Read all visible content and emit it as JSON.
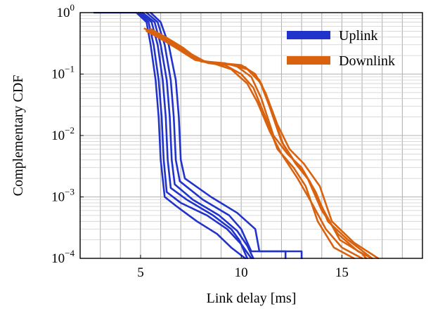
{
  "chart_data": {
    "type": "line",
    "xlabel": "Link delay [ms]",
    "ylabel": "Complementary CDF",
    "xlim": [
      2,
      19
    ],
    "ylim": [
      0.0001,
      1
    ],
    "yscale": "log",
    "grid": true,
    "legend_position": "top-right",
    "x_ticks": [
      {
        "value": 5,
        "label": "5"
      },
      {
        "value": 10,
        "label": "10"
      },
      {
        "value": 15,
        "label": "15"
      }
    ],
    "y_ticks": [
      {
        "value": 1,
        "base": "10",
        "exp": "0"
      },
      {
        "value": 0.1,
        "base": "10",
        "exp": "−1"
      },
      {
        "value": 0.01,
        "base": "10",
        "exp": "−2"
      },
      {
        "value": 0.001,
        "base": "10",
        "exp": "−3"
      },
      {
        "value": 0.0001,
        "base": "10",
        "exp": "−4"
      }
    ],
    "legend": [
      {
        "label": "Uplink",
        "color": "#2233cc"
      },
      {
        "label": "Downlink",
        "color": "#d9620f"
      }
    ],
    "series": [
      {
        "group": "Uplink",
        "color": "#2233cc",
        "points": [
          [
            2.7,
            1
          ],
          [
            4.8,
            1
          ],
          [
            5.3,
            0.7
          ],
          [
            5.5,
            0.3
          ],
          [
            5.75,
            0.08
          ],
          [
            5.9,
            0.02
          ],
          [
            6.0,
            0.004
          ],
          [
            6.2,
            0.001
          ],
          [
            6.8,
            0.0007
          ],
          [
            7.8,
            0.0004
          ],
          [
            8.8,
            0.00025
          ],
          [
            9.5,
            0.00015
          ],
          [
            10.2,
            0.0001
          ]
        ]
      },
      {
        "group": "Uplink",
        "color": "#2233cc",
        "points": [
          [
            4.9,
            1
          ],
          [
            5.4,
            0.7
          ],
          [
            5.65,
            0.3
          ],
          [
            5.9,
            0.08
          ],
          [
            6.05,
            0.02
          ],
          [
            6.15,
            0.004
          ],
          [
            6.3,
            0.0012
          ],
          [
            7.0,
            0.0008
          ],
          [
            8.3,
            0.0005
          ],
          [
            9.3,
            0.0003
          ],
          [
            10.0,
            0.00017
          ],
          [
            10.5,
            0.0001
          ]
        ]
      },
      {
        "group": "Uplink",
        "color": "#2233cc",
        "points": [
          [
            5.0,
            1
          ],
          [
            5.55,
            0.7
          ],
          [
            5.85,
            0.3
          ],
          [
            6.1,
            0.08
          ],
          [
            6.25,
            0.02
          ],
          [
            6.35,
            0.004
          ],
          [
            6.5,
            0.0014
          ],
          [
            7.3,
            0.0009
          ],
          [
            8.6,
            0.0005
          ],
          [
            9.5,
            0.0003
          ],
          [
            9.9,
            0.0002
          ],
          [
            10.3,
            0.0001
          ]
        ]
      },
      {
        "group": "Uplink",
        "color": "#2233cc",
        "points": [
          [
            5.1,
            1
          ],
          [
            5.7,
            0.7
          ],
          [
            6.0,
            0.3
          ],
          [
            6.3,
            0.08
          ],
          [
            6.45,
            0.02
          ],
          [
            6.55,
            0.004
          ],
          [
            6.7,
            0.0016
          ],
          [
            7.6,
            0.0009
          ],
          [
            8.9,
            0.0005
          ],
          [
            9.8,
            0.00028
          ],
          [
            10.3,
            0.00016
          ],
          [
            10.6,
            0.0001
          ]
        ]
      },
      {
        "group": "Uplink",
        "color": "#2233cc",
        "points": [
          [
            5.3,
            1
          ],
          [
            5.85,
            0.7
          ],
          [
            6.2,
            0.3
          ],
          [
            6.5,
            0.08
          ],
          [
            6.65,
            0.02
          ],
          [
            6.75,
            0.004
          ],
          [
            6.95,
            0.0018
          ],
          [
            8.1,
            0.0009
          ],
          [
            9.4,
            0.0005
          ],
          [
            10.0,
            0.0003
          ],
          [
            10.5,
            0.00013
          ],
          [
            13.0,
            0.00013
          ],
          [
            13.0,
            0.0001
          ]
        ]
      },
      {
        "group": "Uplink",
        "color": "#2233cc",
        "points": [
          [
            5.5,
            1
          ],
          [
            6.0,
            0.7
          ],
          [
            6.4,
            0.3
          ],
          [
            6.75,
            0.08
          ],
          [
            6.9,
            0.02
          ],
          [
            7.0,
            0.004
          ],
          [
            7.2,
            0.002
          ],
          [
            8.5,
            0.001
          ],
          [
            9.8,
            0.00055
          ],
          [
            10.7,
            0.0003
          ],
          [
            10.9,
            0.00013
          ],
          [
            12.2,
            0.00013
          ],
          [
            12.2,
            0.0001
          ]
        ]
      },
      {
        "group": "Downlink",
        "color": "#d9620f",
        "points": [
          [
            5.2,
            0.55
          ],
          [
            6.0,
            0.4
          ],
          [
            6.8,
            0.28
          ],
          [
            7.6,
            0.18
          ],
          [
            8.4,
            0.15
          ],
          [
            9.2,
            0.14
          ],
          [
            10.0,
            0.1
          ],
          [
            10.6,
            0.06
          ],
          [
            11.2,
            0.02
          ],
          [
            11.8,
            0.006
          ],
          [
            12.6,
            0.003
          ],
          [
            13.2,
            0.0015
          ],
          [
            13.8,
            0.0004
          ],
          [
            14.6,
            0.00015
          ],
          [
            15.6,
            0.0001
          ]
        ]
      },
      {
        "group": "Downlink",
        "color": "#d9620f",
        "points": [
          [
            5.3,
            0.5
          ],
          [
            6.1,
            0.36
          ],
          [
            6.9,
            0.25
          ],
          [
            7.7,
            0.17
          ],
          [
            8.6,
            0.15
          ],
          [
            9.5,
            0.12
          ],
          [
            10.3,
            0.07
          ],
          [
            10.8,
            0.035
          ],
          [
            11.4,
            0.012
          ],
          [
            12.0,
            0.005
          ],
          [
            12.8,
            0.002
          ],
          [
            13.5,
            0.0008
          ],
          [
            14.2,
            0.0003
          ],
          [
            15.0,
            0.00015
          ],
          [
            16.0,
            0.0001
          ]
        ]
      },
      {
        "group": "Downlink",
        "color": "#d9620f",
        "points": [
          [
            5.4,
            0.52
          ],
          [
            6.2,
            0.38
          ],
          [
            7.0,
            0.26
          ],
          [
            7.8,
            0.17
          ],
          [
            8.8,
            0.15
          ],
          [
            9.7,
            0.14
          ],
          [
            10.5,
            0.09
          ],
          [
            11.0,
            0.04
          ],
          [
            11.6,
            0.01
          ],
          [
            12.3,
            0.005
          ],
          [
            13.0,
            0.003
          ],
          [
            13.7,
            0.0012
          ],
          [
            14.3,
            0.0004
          ],
          [
            15.3,
            0.0002
          ],
          [
            16.5,
            0.0001
          ]
        ]
      },
      {
        "group": "Downlink",
        "color": "#d9620f",
        "points": [
          [
            5.5,
            0.54
          ],
          [
            6.3,
            0.39
          ],
          [
            7.1,
            0.27
          ],
          [
            8.0,
            0.16
          ],
          [
            9.0,
            0.15
          ],
          [
            10.0,
            0.14
          ],
          [
            10.7,
            0.1
          ],
          [
            11.2,
            0.05
          ],
          [
            11.8,
            0.015
          ],
          [
            12.4,
            0.006
          ],
          [
            13.1,
            0.0035
          ],
          [
            13.9,
            0.0015
          ],
          [
            14.5,
            0.0004
          ],
          [
            15.6,
            0.00018
          ],
          [
            16.8,
            0.0001
          ]
        ]
      },
      {
        "group": "Downlink",
        "color": "#d9620f",
        "points": [
          [
            5.6,
            0.5
          ],
          [
            6.4,
            0.35
          ],
          [
            7.2,
            0.24
          ],
          [
            8.1,
            0.16
          ],
          [
            9.1,
            0.15
          ],
          [
            10.2,
            0.13
          ],
          [
            10.9,
            0.08
          ],
          [
            11.4,
            0.03
          ],
          [
            12.0,
            0.008
          ],
          [
            12.6,
            0.004
          ],
          [
            13.3,
            0.002
          ],
          [
            14.0,
            0.0006
          ],
          [
            14.8,
            0.00025
          ],
          [
            15.8,
            0.00013
          ],
          [
            16.5,
            0.0001
          ]
        ]
      },
      {
        "group": "Downlink",
        "color": "#d9620f",
        "points": [
          [
            5.7,
            0.48
          ],
          [
            6.5,
            0.34
          ],
          [
            7.3,
            0.23
          ],
          [
            8.2,
            0.16
          ],
          [
            9.2,
            0.15
          ],
          [
            10.3,
            0.12
          ],
          [
            11.0,
            0.07
          ],
          [
            11.5,
            0.025
          ],
          [
            12.1,
            0.007
          ],
          [
            12.7,
            0.0035
          ],
          [
            13.4,
            0.0018
          ],
          [
            14.1,
            0.0006
          ],
          [
            14.9,
            0.0002
          ],
          [
            16.0,
            0.00012
          ],
          [
            16.2,
            0.0001
          ]
        ]
      }
    ]
  }
}
